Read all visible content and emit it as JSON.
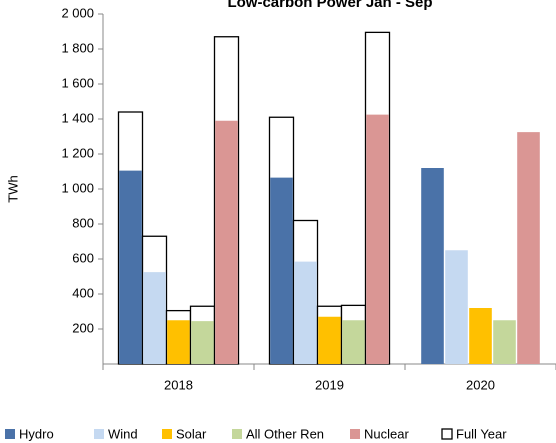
{
  "chart_data": {
    "type": "bar",
    "title": "Low-carbon Power Jan - Sep",
    "ylabel": "TWh",
    "categories": [
      "2018",
      "2019",
      "2020"
    ],
    "series": [
      {
        "name": "Hydro",
        "color": "#4a72a8",
        "values": [
          1105,
          1065,
          1120
        ]
      },
      {
        "name": "Wind",
        "color": "#c5d9f1",
        "values": [
          525,
          585,
          650
        ]
      },
      {
        "name": "Solar",
        "color": "#ffc000",
        "values": [
          250,
          270,
          320
        ]
      },
      {
        "name": "All Other Ren",
        "color": "#c4d79b",
        "values": [
          245,
          250,
          250
        ]
      },
      {
        "name": "Nuclear",
        "color": "#da9694",
        "values": [
          1390,
          1425,
          1325
        ]
      }
    ],
    "full_year": {
      "name": "Full Year",
      "color": "#000000",
      "values": [
        [
          1440,
          730,
          305,
          330,
          1870
        ],
        [
          1410,
          820,
          330,
          335,
          1895
        ],
        [
          null,
          null,
          null,
          null,
          null
        ]
      ]
    },
    "ylim": [
      0,
      2000
    ],
    "yticks": [
      200,
      400,
      600,
      800,
      {
        "value": 1000,
        "label": "1 000"
      },
      {
        "value": 1200,
        "label": "1 200"
      },
      {
        "value": 1400,
        "label": "1 400"
      },
      {
        "value": 1600,
        "label": "1 600"
      },
      {
        "value": 1800,
        "label": "1 800"
      },
      {
        "value": 2000,
        "label": "2 000"
      }
    ],
    "legend": "bottom"
  }
}
